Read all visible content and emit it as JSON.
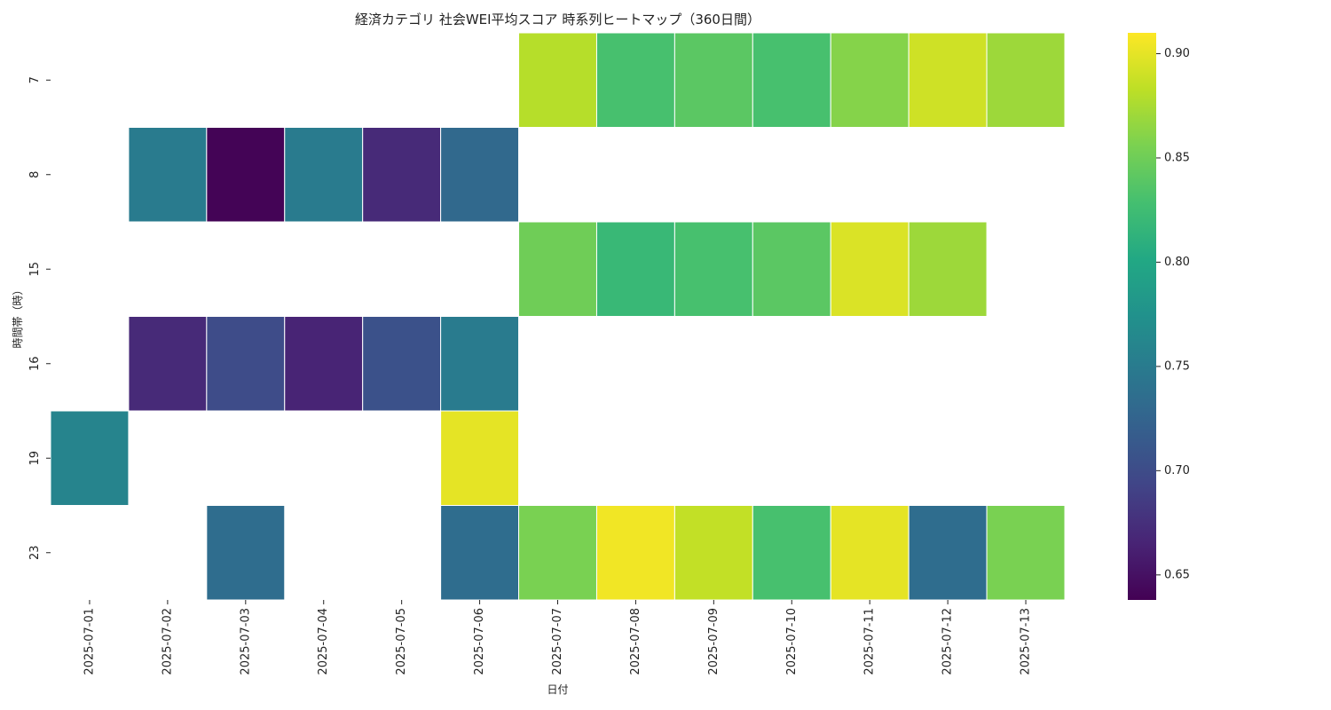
{
  "chart_data": {
    "type": "heatmap",
    "title": "経済カテゴリ 社会WEI平均スコア 時系列ヒートマップ（360日間）",
    "xlabel": "日付",
    "ylabel": "時間帯（時）",
    "x_categories": [
      "2025-07-01",
      "2025-07-02",
      "2025-07-03",
      "2025-07-04",
      "2025-07-05",
      "2025-07-06",
      "2025-07-07",
      "2025-07-08",
      "2025-07-09",
      "2025-07-10",
      "2025-07-11",
      "2025-07-12",
      "2025-07-13"
    ],
    "y_categories": [
      "7",
      "8",
      "15",
      "16",
      "19",
      "23"
    ],
    "values": [
      [
        null,
        null,
        null,
        null,
        null,
        null,
        0.88,
        0.83,
        0.84,
        0.83,
        0.86,
        0.89,
        0.87
      ],
      [
        null,
        0.75,
        0.64,
        0.75,
        0.67,
        0.73,
        null,
        null,
        null,
        null,
        null,
        null,
        null
      ],
      [
        null,
        null,
        null,
        null,
        null,
        null,
        0.85,
        0.82,
        0.83,
        0.84,
        0.895,
        0.87,
        null
      ],
      [
        null,
        0.67,
        0.7,
        0.665,
        0.705,
        0.75,
        null,
        null,
        null,
        null,
        null,
        null,
        null
      ],
      [
        0.76,
        null,
        null,
        null,
        null,
        0.9,
        null,
        null,
        null,
        null,
        null,
        null,
        null
      ],
      [
        null,
        null,
        0.735,
        null,
        null,
        0.735,
        0.855,
        0.905,
        0.885,
        0.83,
        0.9,
        0.735,
        0.855
      ]
    ],
    "colormap": "viridis",
    "color_range": [
      0.638,
      0.91
    ],
    "colorbar_ticks": [
      0.65,
      0.7,
      0.75,
      0.8,
      0.85,
      0.9
    ],
    "colorbar_tick_labels": [
      "0.65",
      "0.70",
      "0.75",
      "0.80",
      "0.85",
      "0.90"
    ],
    "grid": false,
    "colorbar_placement": "right"
  }
}
